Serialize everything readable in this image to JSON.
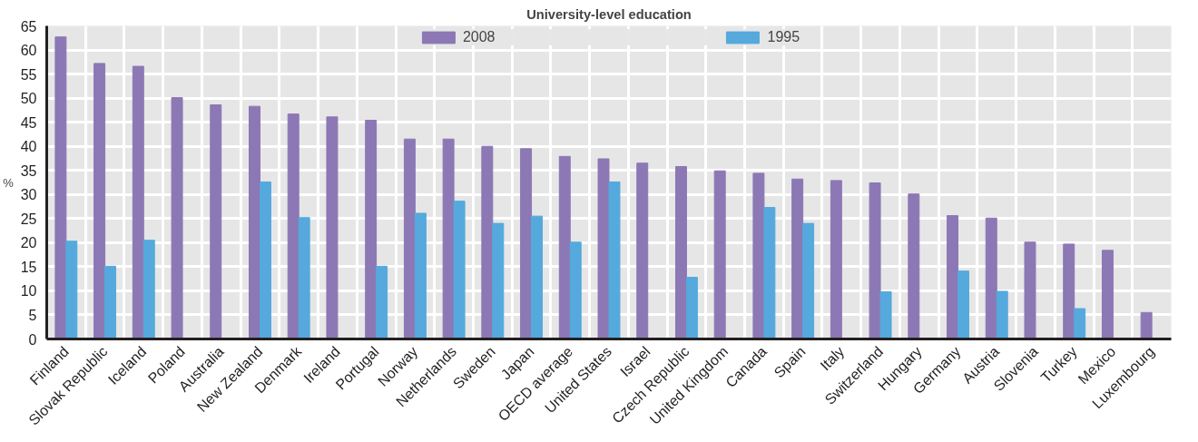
{
  "chart_data": {
    "type": "bar",
    "title": "University-level education",
    "ylabel": "%",
    "categories": [
      "Finland",
      "Slovak Republic",
      "Iceland",
      "Poland",
      "Australia",
      "New Zealand",
      "Denmark",
      "Ireland",
      "Portugal",
      "Norway",
      "Netherlands",
      "Sweden",
      "Japan",
      "OECD average",
      "United States",
      "Israel",
      "Czech Republic",
      "United Kingdom",
      "Canada",
      "Spain",
      "Italy",
      "Switzerland",
      "Hungary",
      "Germany",
      "Austria",
      "Slovenia",
      "Turkey",
      "Mexico",
      "Luxembourg"
    ],
    "series": [
      {
        "name": "2008",
        "color": "#8c78b4",
        "values": [
          62.7,
          57.2,
          56.6,
          50.1,
          48.6,
          48.3,
          46.7,
          46.1,
          45.4,
          41.5,
          41.5,
          40,
          39.5,
          37.9,
          37.4,
          36.5,
          35.8,
          34.9,
          34.4,
          33.2,
          32.9,
          32.4,
          30.1,
          25.6,
          25.1,
          20.1,
          19.7,
          18.4,
          5.5
        ]
      },
      {
        "name": "1995",
        "color": "#55a9dc",
        "values": [
          20.3,
          15.1,
          20.5,
          null,
          null,
          32.6,
          25.2,
          null,
          15.1,
          26.1,
          28.6,
          24,
          25.5,
          20.1,
          32.6,
          null,
          12.8,
          null,
          27.3,
          24,
          null,
          9.8,
          null,
          14.1,
          9.9,
          null,
          6.3,
          null,
          null
        ]
      }
    ],
    "ylim": [
      0,
      65
    ],
    "yticks": [
      0,
      5,
      10,
      15,
      20,
      25,
      30,
      35,
      40,
      45,
      50,
      55,
      60,
      65
    ],
    "grid": true,
    "legend": "top"
  }
}
